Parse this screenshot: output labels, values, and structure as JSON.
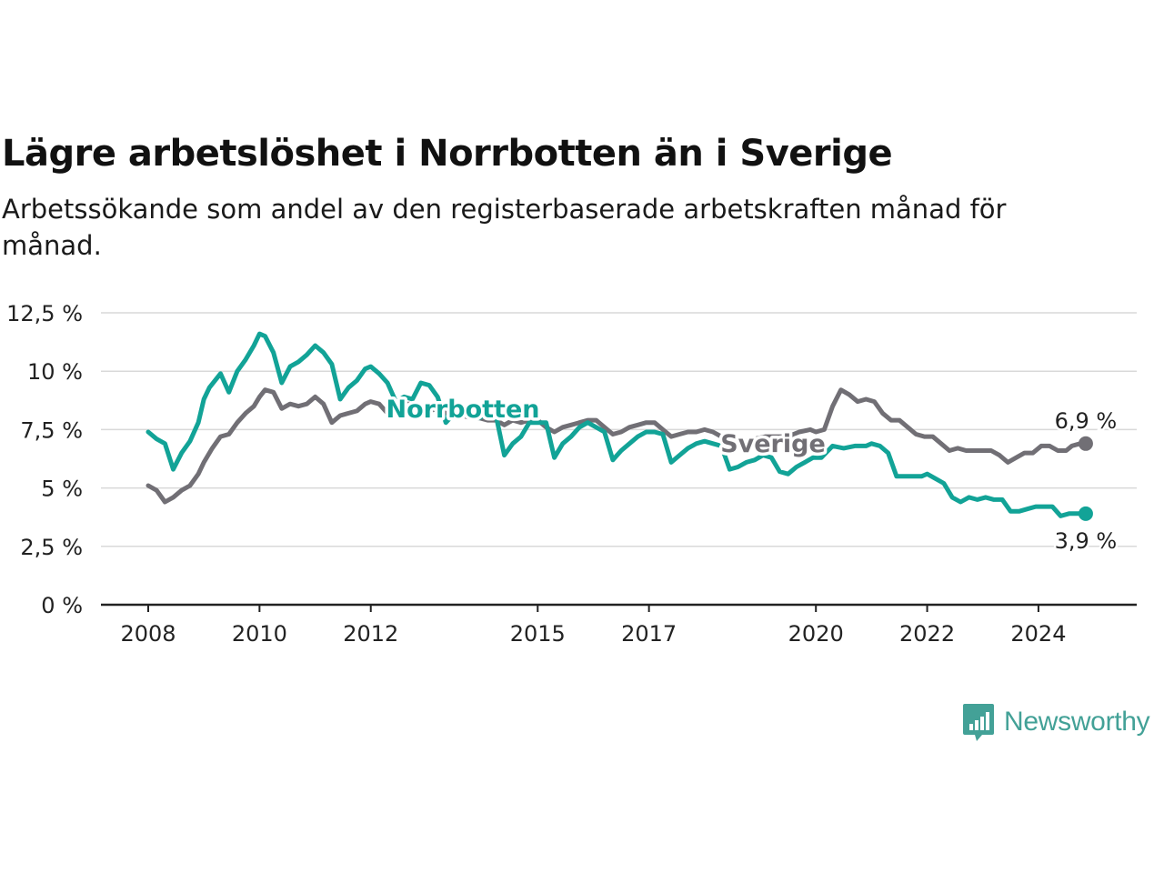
{
  "title": "Lägre arbetslöshet i Norrbotten än i Sverige",
  "subtitle": "Arbetssökande som andel av den registerbaserade arbetskraften månad för månad.",
  "brand": {
    "name": "Newsworthy",
    "icon": "newsworthy-logo-icon"
  },
  "colors": {
    "norrbotten": "#12a397",
    "sverige": "#716f75",
    "grid": "#d9d9d9",
    "axis": "#222222",
    "text": "#222222"
  },
  "chart_data": {
    "type": "line",
    "title": "Lägre arbetslöshet i Norrbotten än i Sverige",
    "subtitle": "Arbetssökande som andel av den registerbaserade arbetskraften månad för månad.",
    "xlabel": "",
    "ylabel": "",
    "xlim": [
      2008.0,
      2024.9
    ],
    "ylim": [
      0,
      12.5
    ],
    "yticks": [
      0,
      2.5,
      5,
      7.5,
      10,
      12.5
    ],
    "ytick_labels": [
      "0 %",
      "2,5 %",
      "5 %",
      "7,5 %",
      "10 %",
      "12,5 %"
    ],
    "xticks": [
      2008,
      2010,
      2012,
      2015,
      2017,
      2020,
      2022,
      2024
    ],
    "xtick_labels": [
      "2008",
      "2010",
      "2012",
      "2015",
      "2017",
      "2020",
      "2022",
      "2024"
    ],
    "grid": "horizontal",
    "legend": "inline labels",
    "series": [
      {
        "name": "Norrbotten",
        "color": "#12a397",
        "end_label": "3,9 %",
        "points": [
          [
            2008.0,
            7.4
          ],
          [
            2008.15,
            7.1
          ],
          [
            2008.3,
            6.9
          ],
          [
            2008.45,
            5.8
          ],
          [
            2008.6,
            6.5
          ],
          [
            2008.75,
            7.0
          ],
          [
            2008.9,
            7.8
          ],
          [
            2009.0,
            8.8
          ],
          [
            2009.1,
            9.3
          ],
          [
            2009.3,
            9.9
          ],
          [
            2009.45,
            9.1
          ],
          [
            2009.6,
            10.0
          ],
          [
            2009.75,
            10.5
          ],
          [
            2009.9,
            11.1
          ],
          [
            2010.0,
            11.6
          ],
          [
            2010.1,
            11.5
          ],
          [
            2010.25,
            10.8
          ],
          [
            2010.4,
            9.5
          ],
          [
            2010.55,
            10.2
          ],
          [
            2010.7,
            10.4
          ],
          [
            2010.85,
            10.7
          ],
          [
            2011.0,
            11.1
          ],
          [
            2011.15,
            10.8
          ],
          [
            2011.3,
            10.3
          ],
          [
            2011.45,
            8.8
          ],
          [
            2011.6,
            9.3
          ],
          [
            2011.75,
            9.6
          ],
          [
            2011.9,
            10.1
          ],
          [
            2012.0,
            10.2
          ],
          [
            2012.15,
            9.9
          ],
          [
            2012.3,
            9.5
          ],
          [
            2012.45,
            8.7
          ],
          [
            2012.6,
            8.9
          ],
          [
            2012.75,
            8.8
          ],
          [
            2012.9,
            9.5
          ],
          [
            2013.05,
            9.4
          ],
          [
            2013.2,
            8.9
          ],
          [
            2013.35,
            7.8
          ],
          [
            2013.5,
            8.2
          ],
          [
            2013.65,
            8.3
          ],
          [
            2013.8,
            8.1
          ],
          [
            2013.95,
            8.0
          ],
          [
            2014.1,
            8.2
          ],
          [
            2014.25,
            8.1
          ],
          [
            2014.4,
            6.4
          ],
          [
            2014.55,
            6.9
          ],
          [
            2014.7,
            7.2
          ],
          [
            2014.85,
            7.8
          ],
          [
            2015.0,
            7.8
          ],
          [
            2015.15,
            7.8
          ],
          [
            2015.3,
            6.3
          ],
          [
            2015.45,
            6.9
          ],
          [
            2015.6,
            7.2
          ],
          [
            2015.75,
            7.6
          ],
          [
            2015.9,
            7.8
          ],
          [
            2016.05,
            7.6
          ],
          [
            2016.2,
            7.4
          ],
          [
            2016.35,
            6.2
          ],
          [
            2016.5,
            6.6
          ],
          [
            2016.65,
            6.9
          ],
          [
            2016.8,
            7.2
          ],
          [
            2016.95,
            7.4
          ],
          [
            2017.1,
            7.4
          ],
          [
            2017.25,
            7.3
          ],
          [
            2017.4,
            6.1
          ],
          [
            2017.55,
            6.4
          ],
          [
            2017.7,
            6.7
          ],
          [
            2017.85,
            6.9
          ],
          [
            2018.0,
            7.0
          ],
          [
            2018.15,
            6.9
          ],
          [
            2018.3,
            6.8
          ],
          [
            2018.45,
            5.8
          ],
          [
            2018.6,
            5.9
          ],
          [
            2018.75,
            6.1
          ],
          [
            2018.9,
            6.2
          ],
          [
            2019.05,
            6.4
          ],
          [
            2019.2,
            6.3
          ],
          [
            2019.35,
            5.7
          ],
          [
            2019.5,
            5.6
          ],
          [
            2019.65,
            5.9
          ],
          [
            2019.8,
            6.1
          ],
          [
            2019.95,
            6.3
          ],
          [
            2020.1,
            6.3
          ],
          [
            2020.3,
            6.8
          ],
          [
            2020.5,
            6.7
          ],
          [
            2020.7,
            6.8
          ],
          [
            2020.9,
            6.8
          ],
          [
            2021.0,
            6.9
          ],
          [
            2021.15,
            6.8
          ],
          [
            2021.3,
            6.5
          ],
          [
            2021.45,
            5.5
          ],
          [
            2021.6,
            5.5
          ],
          [
            2021.75,
            5.5
          ],
          [
            2021.9,
            5.5
          ],
          [
            2022.0,
            5.6
          ],
          [
            2022.15,
            5.4
          ],
          [
            2022.3,
            5.2
          ],
          [
            2022.45,
            4.6
          ],
          [
            2022.6,
            4.4
          ],
          [
            2022.75,
            4.6
          ],
          [
            2022.9,
            4.5
          ],
          [
            2023.05,
            4.6
          ],
          [
            2023.2,
            4.5
          ],
          [
            2023.35,
            4.5
          ],
          [
            2023.5,
            4.0
          ],
          [
            2023.65,
            4.0
          ],
          [
            2023.8,
            4.1
          ],
          [
            2023.95,
            4.2
          ],
          [
            2024.1,
            4.2
          ],
          [
            2024.25,
            4.2
          ],
          [
            2024.4,
            3.8
          ],
          [
            2024.55,
            3.9
          ],
          [
            2024.7,
            3.9
          ],
          [
            2024.85,
            3.9
          ]
        ]
      },
      {
        "name": "Sverige",
        "color": "#716f75",
        "end_label": "6,9 %",
        "points": [
          [
            2008.0,
            5.1
          ],
          [
            2008.15,
            4.9
          ],
          [
            2008.3,
            4.4
          ],
          [
            2008.45,
            4.6
          ],
          [
            2008.6,
            4.9
          ],
          [
            2008.75,
            5.1
          ],
          [
            2008.9,
            5.6
          ],
          [
            2009.0,
            6.1
          ],
          [
            2009.15,
            6.7
          ],
          [
            2009.3,
            7.2
          ],
          [
            2009.45,
            7.3
          ],
          [
            2009.6,
            7.8
          ],
          [
            2009.75,
            8.2
          ],
          [
            2009.9,
            8.5
          ],
          [
            2010.0,
            8.9
          ],
          [
            2010.1,
            9.2
          ],
          [
            2010.25,
            9.1
          ],
          [
            2010.4,
            8.4
          ],
          [
            2010.55,
            8.6
          ],
          [
            2010.7,
            8.5
          ],
          [
            2010.85,
            8.6
          ],
          [
            2011.0,
            8.9
          ],
          [
            2011.15,
            8.6
          ],
          [
            2011.3,
            7.8
          ],
          [
            2011.45,
            8.1
          ],
          [
            2011.6,
            8.2
          ],
          [
            2011.75,
            8.3
          ],
          [
            2011.9,
            8.6
          ],
          [
            2012.0,
            8.7
          ],
          [
            2012.15,
            8.6
          ],
          [
            2012.3,
            8.2
          ],
          [
            2012.45,
            8.5
          ],
          [
            2012.6,
            8.6
          ],
          [
            2012.75,
            8.6
          ],
          [
            2012.9,
            8.5
          ],
          [
            2013.05,
            8.3
          ],
          [
            2013.2,
            8.4
          ],
          [
            2013.35,
            8.2
          ],
          [
            2013.5,
            8.2
          ],
          [
            2013.65,
            8.1
          ],
          [
            2013.8,
            8.0
          ],
          [
            2013.95,
            8.0
          ],
          [
            2014.1,
            7.9
          ],
          [
            2014.25,
            7.9
          ],
          [
            2014.4,
            7.7
          ],
          [
            2014.55,
            7.9
          ],
          [
            2014.7,
            7.8
          ],
          [
            2014.85,
            7.9
          ],
          [
            2015.0,
            7.9
          ],
          [
            2015.15,
            7.6
          ],
          [
            2015.3,
            7.4
          ],
          [
            2015.45,
            7.6
          ],
          [
            2015.6,
            7.7
          ],
          [
            2015.75,
            7.8
          ],
          [
            2015.9,
            7.9
          ],
          [
            2016.05,
            7.9
          ],
          [
            2016.2,
            7.6
          ],
          [
            2016.35,
            7.3
          ],
          [
            2016.5,
            7.4
          ],
          [
            2016.65,
            7.6
          ],
          [
            2016.8,
            7.7
          ],
          [
            2016.95,
            7.8
          ],
          [
            2017.1,
            7.8
          ],
          [
            2017.25,
            7.5
          ],
          [
            2017.4,
            7.2
          ],
          [
            2017.55,
            7.3
          ],
          [
            2017.7,
            7.4
          ],
          [
            2017.85,
            7.4
          ],
          [
            2018.0,
            7.5
          ],
          [
            2018.15,
            7.4
          ],
          [
            2018.3,
            7.2
          ],
          [
            2018.5,
            7.1
          ],
          [
            2018.7,
            7.0
          ],
          [
            2018.9,
            7.1
          ],
          [
            2019.1,
            7.2
          ],
          [
            2019.3,
            7.2
          ],
          [
            2019.5,
            7.2
          ],
          [
            2019.7,
            7.4
          ],
          [
            2019.9,
            7.5
          ],
          [
            2020.0,
            7.4
          ],
          [
            2020.15,
            7.5
          ],
          [
            2020.3,
            8.5
          ],
          [
            2020.45,
            9.2
          ],
          [
            2020.6,
            9.0
          ],
          [
            2020.75,
            8.7
          ],
          [
            2020.9,
            8.8
          ],
          [
            2021.05,
            8.7
          ],
          [
            2021.2,
            8.2
          ],
          [
            2021.35,
            7.9
          ],
          [
            2021.5,
            7.9
          ],
          [
            2021.65,
            7.6
          ],
          [
            2021.8,
            7.3
          ],
          [
            2021.95,
            7.2
          ],
          [
            2022.1,
            7.2
          ],
          [
            2022.25,
            6.9
          ],
          [
            2022.4,
            6.6
          ],
          [
            2022.55,
            6.7
          ],
          [
            2022.7,
            6.6
          ],
          [
            2022.85,
            6.6
          ],
          [
            2023.0,
            6.6
          ],
          [
            2023.15,
            6.6
          ],
          [
            2023.3,
            6.4
          ],
          [
            2023.45,
            6.1
          ],
          [
            2023.6,
            6.3
          ],
          [
            2023.75,
            6.5
          ],
          [
            2023.9,
            6.5
          ],
          [
            2024.05,
            6.8
          ],
          [
            2024.2,
            6.8
          ],
          [
            2024.35,
            6.6
          ],
          [
            2024.5,
            6.6
          ],
          [
            2024.6,
            6.8
          ],
          [
            2024.75,
            6.9
          ],
          [
            2024.85,
            6.9
          ]
        ]
      }
    ]
  }
}
